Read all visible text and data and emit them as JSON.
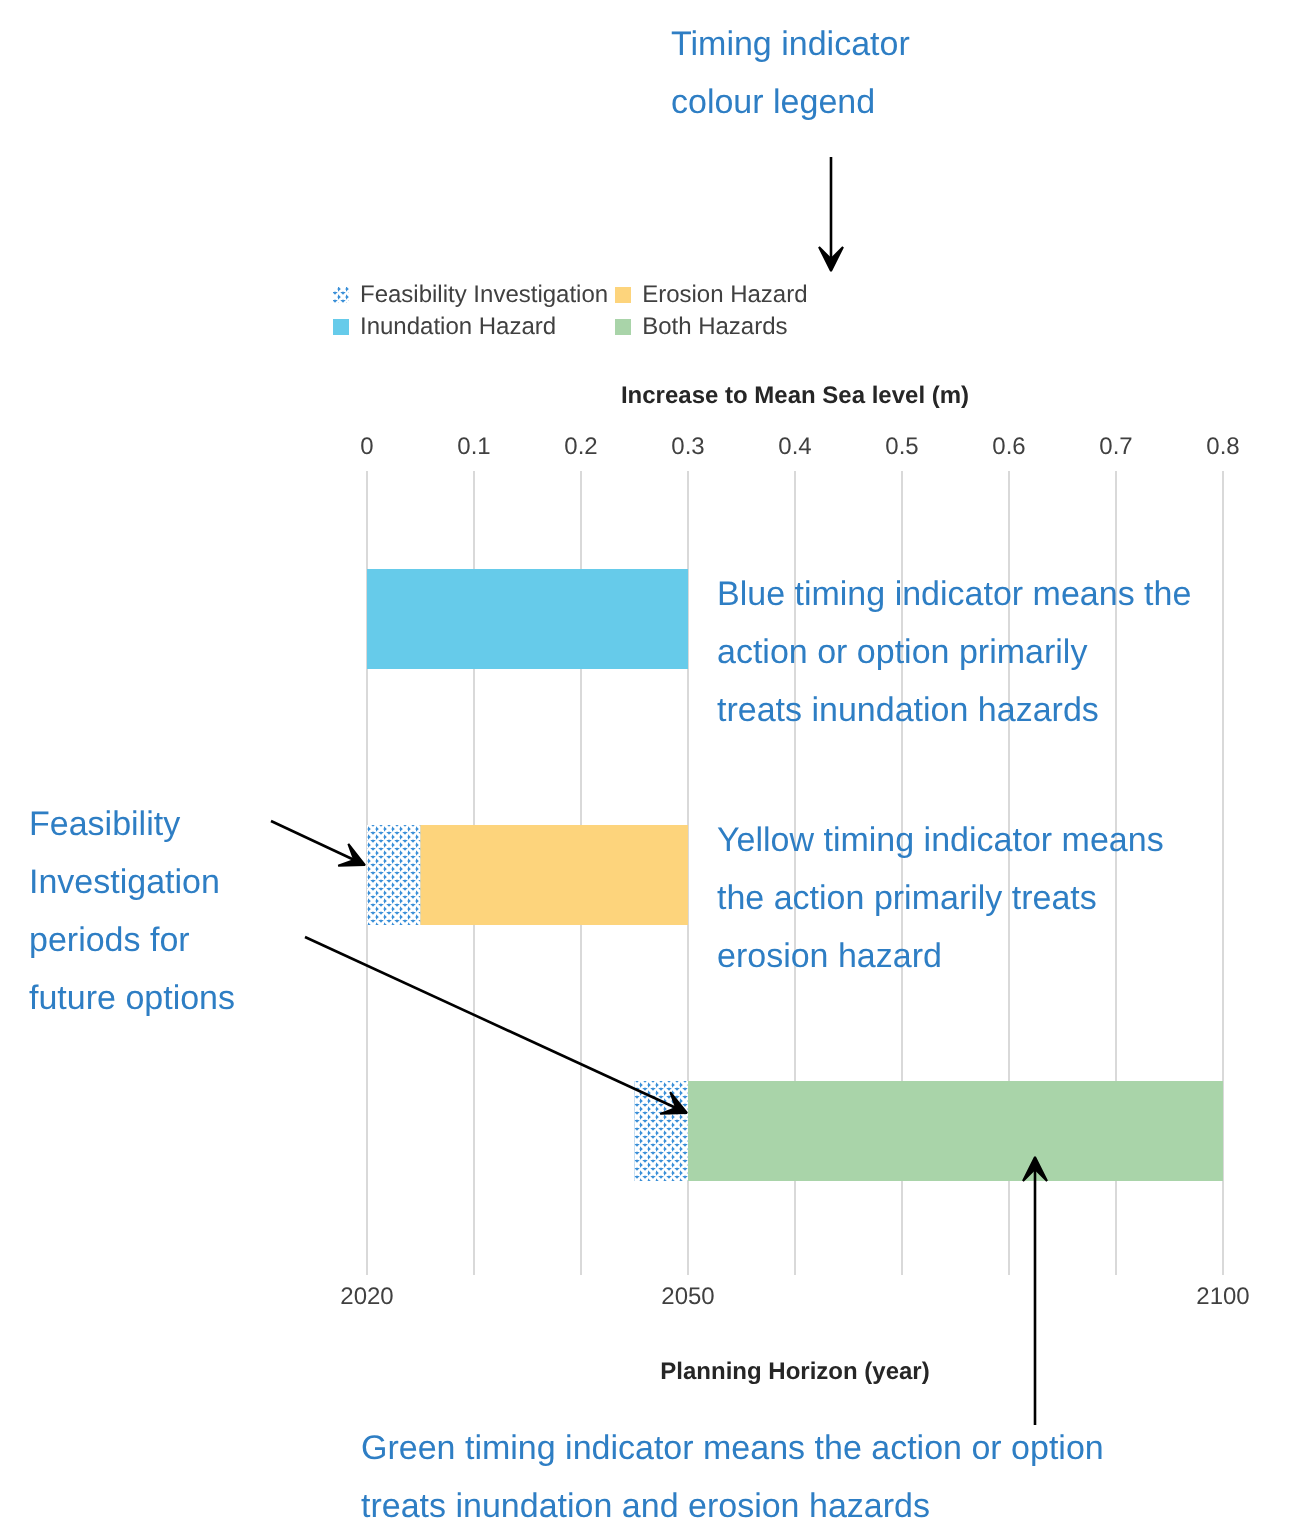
{
  "chart_data": {
    "type": "bar",
    "orientation": "horizontal",
    "categories": [
      null,
      null,
      null
    ],
    "series": [
      {
        "name": "Feasibility Investigation",
        "color": "#3a8fd8",
        "values": [
          null,
          5,
          5
        ],
        "base": [
          null,
          2020,
          2045
        ]
      },
      {
        "name": "Inundation Hazard",
        "color": "#66cbea",
        "values": [
          30,
          null,
          null
        ],
        "base": [
          2020,
          null,
          null
        ]
      },
      {
        "name": "Erosion Hazard",
        "color": "#fdd47c",
        "values": [
          null,
          25,
          null
        ],
        "base": [
          null,
          2025,
          null
        ]
      },
      {
        "name": "Both Hazards",
        "color": "#a9d4a9",
        "values": [
          null,
          null,
          50
        ],
        "base": [
          null,
          null,
          2050
        ]
      }
    ],
    "xlabel": "Planning Horizon (year)",
    "xlim": [
      2020,
      2100
    ],
    "xticks": [
      2020,
      {
        "value": 2030,
        "label": null
      },
      {
        "value": 2040,
        "label": null
      },
      2050,
      {
        "value": 2060,
        "label": null
      },
      {
        "value": 2070,
        "label": null
      },
      {
        "value": 2080,
        "label": null
      },
      {
        "value": 2090,
        "label": null
      },
      2100
    ],
    "x2label": "Increase to Mean Sea level (m)",
    "x2lim": [
      0,
      0.8
    ],
    "x2ticks": [
      0,
      0.1,
      0.2,
      0.3,
      0.4,
      0.5,
      0.6,
      0.7,
      0.8
    ],
    "grid": "x",
    "legend": "top",
    "annotations": [
      "Timing indicator colour legend",
      "Blue timing indicator means the action or option primarily treats inundation hazards",
      "Yellow timing indicator means the action primarily treats erosion hazard",
      "Feasibility Investigation periods for future options",
      "Green timing indicator means the action or option treats inundation and erosion hazards"
    ]
  }
}
